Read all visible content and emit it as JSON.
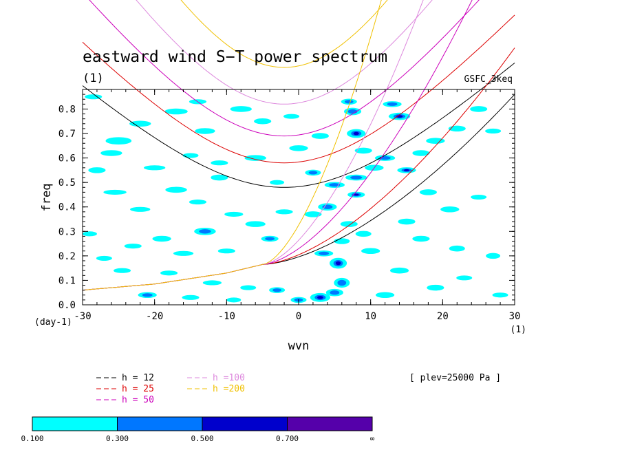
{
  "chart_data": {
    "type": "line",
    "title": "eastward wind S−T power spectrum",
    "subtitle": "(1)",
    "dataset": "GSFC_3keq",
    "xlabel": "wvn",
    "ylabel": "freq",
    "xunit": "(1)",
    "yunit": "(day-1)",
    "xlim": [
      -30,
      30
    ],
    "ylim": [
      0.0,
      0.88
    ],
    "xticks": [
      -30,
      -20,
      -10,
      0,
      10,
      20,
      30
    ],
    "yticks": [
      0.0,
      0.1,
      0.2,
      0.3,
      0.4,
      0.5,
      0.6,
      0.7,
      0.8
    ],
    "ytick_labels": [
      "0.0",
      "0.1",
      "0.2",
      "0.3",
      "0.4",
      "0.5",
      "0.6",
      "0.7",
      "0.8"
    ],
    "annotation": "[ plev=25000 Pa ]",
    "series": [
      {
        "name": "h = 12",
        "h": 12,
        "color": "#000000",
        "kelvin_min_x": 0,
        "kelvin_end_x": 30,
        "kelvin_end_y": 0.86,
        "gravity_min_x": -2,
        "gravity_min_y": 0.48
      },
      {
        "name": "h = 25",
        "h": 25,
        "color": "#dd0000",
        "kelvin_min_x": 0,
        "kelvin_end_x": 30,
        "kelvin_end_y": 1.05,
        "gravity_min_x": -2,
        "gravity_min_y": 0.58
      },
      {
        "name": "h = 50",
        "h": 50,
        "color": "#cc00bb",
        "kelvin_min_x": 0,
        "kelvin_end_x": 25,
        "kelvin_end_y": 1.3,
        "gravity_min_x": -2,
        "gravity_min_y": 0.69
      },
      {
        "name": "h =100",
        "h": 100,
        "color": "#dd88dd",
        "kelvin_min_x": 0,
        "kelvin_end_x": 18,
        "kelvin_end_y": 1.3,
        "gravity_min_x": -2,
        "gravity_min_y": 0.82
      },
      {
        "name": "h =200",
        "h": 200,
        "color": "#f0c000",
        "kelvin_min_x": 0,
        "kelvin_end_x": 12,
        "kelvin_end_y": 1.3,
        "gravity_min_x": -2,
        "gravity_min_y": 0.97
      }
    ],
    "rossby_base": [
      [
        -30,
        0.06
      ],
      [
        -20,
        0.085
      ],
      [
        -10,
        0.13
      ],
      [
        -5,
        0.165
      ]
    ],
    "contour_levels": [
      {
        "label": "0.100",
        "color": "#00ffff"
      },
      {
        "label": "0.300",
        "color": "#0077ff"
      },
      {
        "label": "0.500",
        "color": "#0000cc"
      },
      {
        "label": "0.700",
        "color": "#5500aa"
      },
      {
        "label": "∞",
        "color": ""
      }
    ],
    "contour_patches": [
      [
        -28.5,
        0.85,
        1.2,
        0.01,
        0
      ],
      [
        -25,
        0.67,
        1.8,
        0.015,
        0
      ],
      [
        -22,
        0.74,
        1.5,
        0.012,
        0
      ],
      [
        -26,
        0.62,
        1.5,
        0.012,
        0
      ],
      [
        -20,
        0.56,
        1.5,
        0.01,
        0
      ],
      [
        -17,
        0.79,
        1.6,
        0.012,
        0
      ],
      [
        -14,
        0.83,
        1.2,
        0.01,
        0
      ],
      [
        -13,
        0.71,
        1.4,
        0.012,
        0
      ],
      [
        -8,
        0.8,
        1.5,
        0.012,
        0
      ],
      [
        -5,
        0.75,
        1.2,
        0.012,
        0
      ],
      [
        -11,
        0.58,
        1.2,
        0.01,
        0
      ],
      [
        -6,
        0.6,
        1.5,
        0.012,
        0
      ],
      [
        -25.5,
        0.46,
        1.6,
        0.01,
        0
      ],
      [
        -22,
        0.39,
        1.4,
        0.01,
        0
      ],
      [
        -17,
        0.47,
        1.5,
        0.012,
        0
      ],
      [
        -14,
        0.42,
        1.2,
        0.01,
        0
      ],
      [
        -11,
        0.52,
        1.2,
        0.012,
        0
      ],
      [
        -9,
        0.37,
        1.3,
        0.01,
        0
      ],
      [
        -6,
        0.33,
        1.4,
        0.012,
        0
      ],
      [
        -2,
        0.38,
        1.2,
        0.01,
        0
      ],
      [
        -13,
        0.3,
        1.5,
        0.015,
        1
      ],
      [
        -19,
        0.27,
        1.3,
        0.012,
        0
      ],
      [
        -23,
        0.24,
        1.2,
        0.01,
        0
      ],
      [
        -16,
        0.21,
        1.4,
        0.01,
        0
      ],
      [
        -10,
        0.22,
        1.2,
        0.01,
        0
      ],
      [
        -4,
        0.27,
        1.2,
        0.012,
        1
      ],
      [
        -27,
        0.19,
        1.1,
        0.01,
        0
      ],
      [
        -24.5,
        0.14,
        1.2,
        0.01,
        0
      ],
      [
        -18,
        0.13,
        1.2,
        0.01,
        0
      ],
      [
        -12,
        0.09,
        1.3,
        0.01,
        0
      ],
      [
        -7,
        0.07,
        1.1,
        0.01,
        0
      ],
      [
        -3,
        0.06,
        1.1,
        0.012,
        1
      ],
      [
        -21,
        0.04,
        1.3,
        0.012,
        1
      ],
      [
        -15,
        0.03,
        1.2,
        0.01,
        0
      ],
      [
        -9,
        0.02,
        1.0,
        0.01,
        0
      ],
      [
        0,
        0.02,
        1.1,
        0.012,
        1
      ],
      [
        3,
        0.03,
        1.4,
        0.018,
        2
      ],
      [
        5,
        0.05,
        1.2,
        0.015,
        1
      ],
      [
        6,
        0.09,
        1.1,
        0.02,
        1
      ],
      [
        5.5,
        0.17,
        1.2,
        0.022,
        2
      ],
      [
        3.5,
        0.21,
        1.3,
        0.012,
        1
      ],
      [
        6,
        0.26,
        1.1,
        0.012,
        0
      ],
      [
        2,
        0.37,
        1.2,
        0.012,
        0
      ],
      [
        4,
        0.4,
        1.3,
        0.015,
        1
      ],
      [
        7,
        0.33,
        1.2,
        0.012,
        0
      ],
      [
        9,
        0.29,
        1.1,
        0.012,
        0
      ],
      [
        10,
        0.22,
        1.3,
        0.012,
        0
      ],
      [
        8,
        0.45,
        1.2,
        0.012,
        2
      ],
      [
        5,
        0.49,
        1.4,
        0.012,
        1
      ],
      [
        8,
        0.52,
        1.5,
        0.012,
        1
      ],
      [
        10.5,
        0.56,
        1.3,
        0.012,
        0
      ],
      [
        9,
        0.63,
        1.2,
        0.012,
        0
      ],
      [
        8,
        0.7,
        1.3,
        0.018,
        2
      ],
      [
        7.5,
        0.79,
        1.2,
        0.015,
        1
      ],
      [
        7,
        0.83,
        1.1,
        0.012,
        1
      ],
      [
        14,
        0.77,
        1.5,
        0.015,
        2
      ],
      [
        13,
        0.82,
        1.3,
        0.012,
        1
      ],
      [
        15,
        0.55,
        1.3,
        0.012,
        2
      ],
      [
        17,
        0.62,
        1.2,
        0.012,
        0
      ],
      [
        12,
        0.6,
        1.4,
        0.012,
        1
      ],
      [
        19,
        0.67,
        1.3,
        0.012,
        0
      ],
      [
        22,
        0.72,
        1.2,
        0.012,
        0
      ],
      [
        25,
        0.8,
        1.2,
        0.012,
        0
      ],
      [
        27,
        0.71,
        1.1,
        0.01,
        0
      ],
      [
        18,
        0.46,
        1.2,
        0.012,
        0
      ],
      [
        21,
        0.39,
        1.3,
        0.012,
        0
      ],
      [
        25,
        0.44,
        1.1,
        0.01,
        0
      ],
      [
        15,
        0.34,
        1.2,
        0.012,
        0
      ],
      [
        17,
        0.27,
        1.2,
        0.012,
        0
      ],
      [
        22,
        0.23,
        1.1,
        0.012,
        0
      ],
      [
        27,
        0.2,
        1.0,
        0.012,
        0
      ],
      [
        14,
        0.14,
        1.3,
        0.012,
        0
      ],
      [
        19,
        0.07,
        1.2,
        0.012,
        0
      ],
      [
        23,
        0.11,
        1.1,
        0.01,
        0
      ],
      [
        28,
        0.04,
        1.1,
        0.01,
        0
      ],
      [
        12,
        0.04,
        1.3,
        0.012,
        0
      ],
      [
        2,
        0.54,
        1.1,
        0.012,
        1
      ],
      [
        -3,
        0.5,
        1.0,
        0.01,
        0
      ],
      [
        0,
        0.64,
        1.3,
        0.012,
        0
      ],
      [
        3,
        0.69,
        1.2,
        0.012,
        0
      ],
      [
        -1,
        0.77,
        1.1,
        0.01,
        0
      ],
      [
        -29,
        0.29,
        1.0,
        0.01,
        0
      ],
      [
        -28,
        0.55,
        1.2,
        0.012,
        0
      ],
      [
        -15,
        0.61,
        1.1,
        0.01,
        0
      ]
    ]
  },
  "legend": {
    "lines": [
      {
        "label": "h = 12",
        "color": "#000000"
      },
      {
        "label": "h = 25",
        "color": "#dd0000"
      },
      {
        "label": "h = 50",
        "color": "#cc00bb"
      },
      {
        "label": "h =100",
        "color": "#dd88dd"
      },
      {
        "label": "h =200",
        "color": "#f0c000"
      }
    ]
  }
}
